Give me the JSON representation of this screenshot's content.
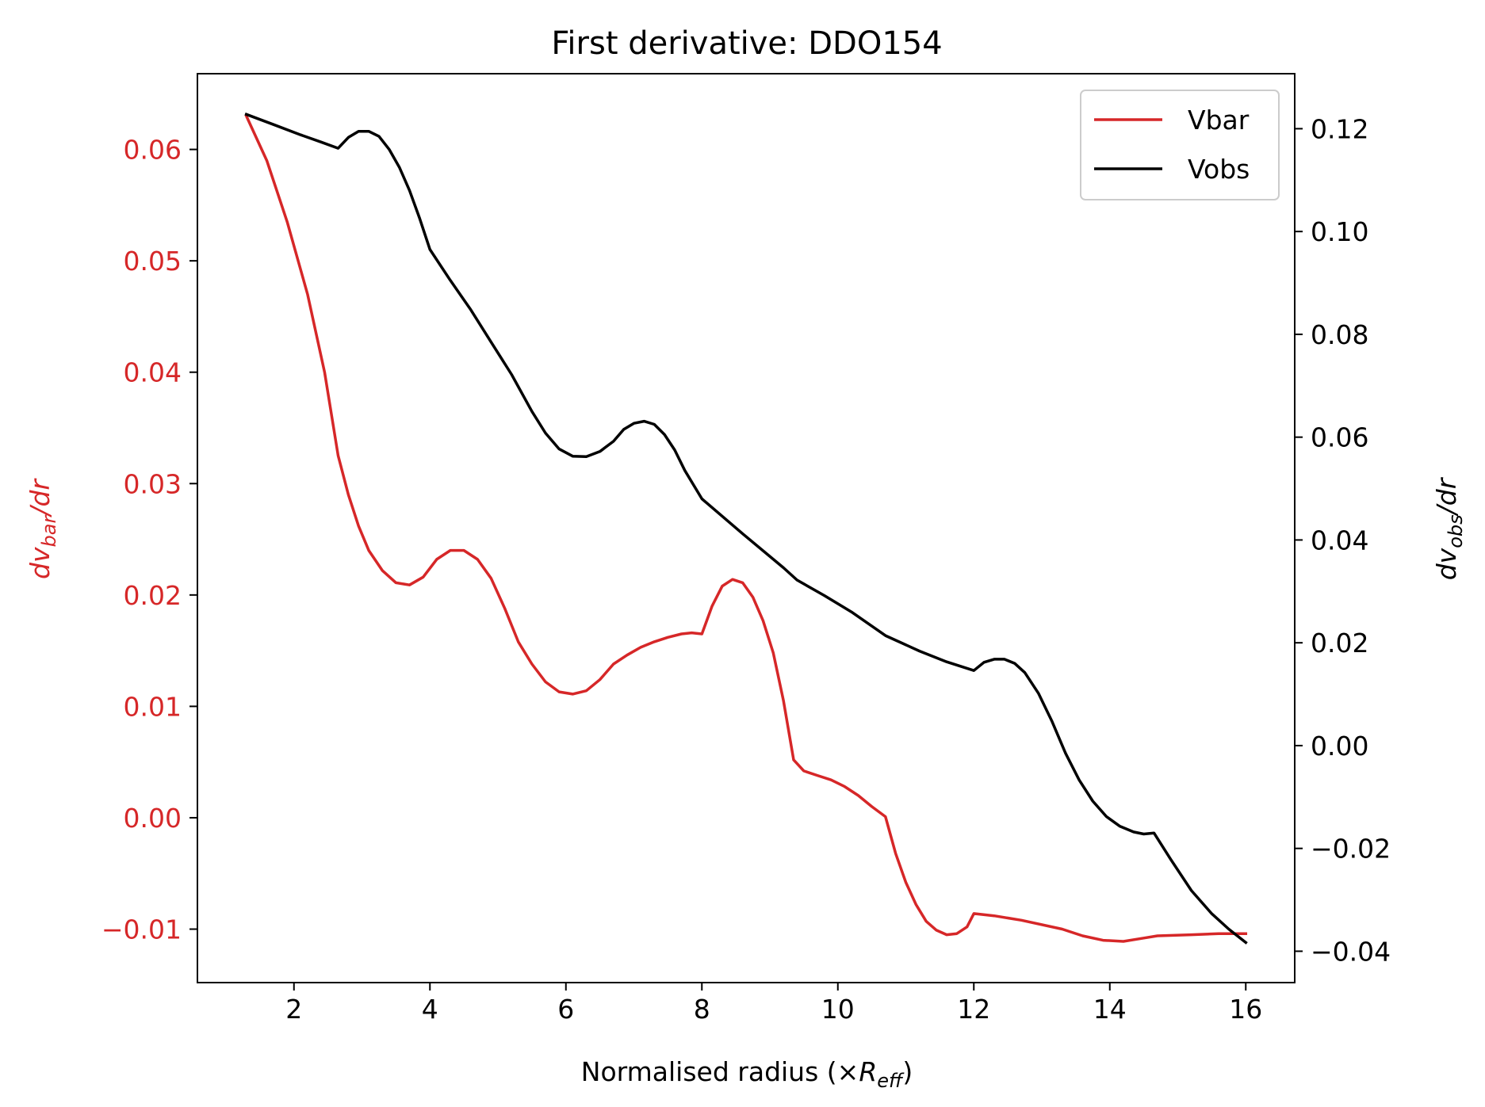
{
  "chart_data": {
    "type": "line",
    "title": "First derivative: DDO154",
    "xlabel": "Normalised radius (×R_eff)",
    "xlabel_parts": {
      "prefix": "Normalised radius (×",
      "var": "R",
      "sub": "eff",
      "suffix": ")"
    },
    "ylabel_left": "dv_bar/dr",
    "ylabel_left_parts": {
      "pre": "dv",
      "sub": "bar",
      "post": "/dr"
    },
    "ylabel_right": "dv_obs/dr",
    "ylabel_right_parts": {
      "pre": "dv",
      "sub": "obs",
      "post": "/dr"
    },
    "xlim": [
      0.58,
      16.72
    ],
    "ylim_left": [
      -0.0148,
      0.0668
    ],
    "ylim_right": [
      -0.0461,
      0.1307
    ],
    "x_ticks": [
      2,
      4,
      6,
      8,
      10,
      12,
      14,
      16
    ],
    "x_tick_labels": [
      "2",
      "4",
      "6",
      "8",
      "10",
      "12",
      "14",
      "16"
    ],
    "y_left_ticks": [
      -0.01,
      0.0,
      0.01,
      0.02,
      0.03,
      0.04,
      0.05,
      0.06
    ],
    "y_left_tick_labels": [
      "−0.01",
      "0.00",
      "0.01",
      "0.02",
      "0.03",
      "0.04",
      "0.05",
      "0.06"
    ],
    "y_right_ticks": [
      -0.04,
      -0.02,
      0.0,
      0.02,
      0.04,
      0.06,
      0.08,
      0.1,
      0.12
    ],
    "y_right_tick_labels": [
      "−0.04",
      "−0.02",
      "0.00",
      "0.02",
      "0.04",
      "0.06",
      "0.08",
      "0.10",
      "0.12"
    ],
    "grid": false,
    "legend_position": "top-right",
    "series": [
      {
        "name": "Vbar",
        "color": "#d62728",
        "axis": "left",
        "points": [
          [
            1.3,
            0.063
          ],
          [
            1.6,
            0.059
          ],
          [
            1.9,
            0.0535
          ],
          [
            2.2,
            0.047
          ],
          [
            2.45,
            0.04
          ],
          [
            2.65,
            0.0325
          ],
          [
            2.8,
            0.029
          ],
          [
            2.95,
            0.0262
          ],
          [
            3.1,
            0.024
          ],
          [
            3.3,
            0.0222
          ],
          [
            3.5,
            0.0211
          ],
          [
            3.7,
            0.0209
          ],
          [
            3.9,
            0.0216
          ],
          [
            4.1,
            0.0232
          ],
          [
            4.3,
            0.024
          ],
          [
            4.5,
            0.024
          ],
          [
            4.7,
            0.0232
          ],
          [
            4.9,
            0.0215
          ],
          [
            5.1,
            0.0188
          ],
          [
            5.3,
            0.0158
          ],
          [
            5.5,
            0.0138
          ],
          [
            5.7,
            0.0122
          ],
          [
            5.9,
            0.0113
          ],
          [
            6.1,
            0.0111
          ],
          [
            6.3,
            0.0114
          ],
          [
            6.5,
            0.0124
          ],
          [
            6.7,
            0.0138
          ],
          [
            6.9,
            0.0146
          ],
          [
            7.1,
            0.0153
          ],
          [
            7.3,
            0.0158
          ],
          [
            7.5,
            0.0162
          ],
          [
            7.7,
            0.0165
          ],
          [
            7.85,
            0.0166
          ],
          [
            8.0,
            0.0165
          ],
          [
            8.15,
            0.019
          ],
          [
            8.3,
            0.0208
          ],
          [
            8.45,
            0.0214
          ],
          [
            8.6,
            0.0211
          ],
          [
            8.75,
            0.0198
          ],
          [
            8.9,
            0.0177
          ],
          [
            9.05,
            0.0148
          ],
          [
            9.2,
            0.0105
          ],
          [
            9.35,
            0.0052
          ],
          [
            9.5,
            0.0042
          ],
          [
            9.7,
            0.0038
          ],
          [
            9.9,
            0.0034
          ],
          [
            10.1,
            0.0028
          ],
          [
            10.3,
            0.002
          ],
          [
            10.5,
            0.001
          ],
          [
            10.7,
            0.0001
          ],
          [
            10.85,
            -0.0032
          ],
          [
            11.0,
            -0.0058
          ],
          [
            11.15,
            -0.0078
          ],
          [
            11.3,
            -0.0093
          ],
          [
            11.45,
            -0.0101
          ],
          [
            11.6,
            -0.0105
          ],
          [
            11.75,
            -0.0104
          ],
          [
            11.9,
            -0.0098
          ],
          [
            12.0,
            -0.0086
          ],
          [
            12.3,
            -0.0088
          ],
          [
            12.7,
            -0.0092
          ],
          [
            13.3,
            -0.01
          ],
          [
            13.6,
            -0.0106
          ],
          [
            13.9,
            -0.011
          ],
          [
            14.2,
            -0.0111
          ],
          [
            14.5,
            -0.0108
          ],
          [
            14.7,
            -0.0106
          ],
          [
            15.2,
            -0.0105
          ],
          [
            15.6,
            -0.0104
          ],
          [
            16.0,
            -0.0104
          ]
        ]
      },
      {
        "name": "Vobs",
        "color": "#000000",
        "axis": "right",
        "points": [
          [
            1.3,
            0.1228
          ],
          [
            1.7,
            0.1208
          ],
          [
            2.1,
            0.1188
          ],
          [
            2.4,
            0.1174
          ],
          [
            2.65,
            0.1162
          ],
          [
            2.8,
            0.1183
          ],
          [
            2.95,
            0.1195
          ],
          [
            3.1,
            0.1195
          ],
          [
            3.25,
            0.1185
          ],
          [
            3.4,
            0.116
          ],
          [
            3.55,
            0.1125
          ],
          [
            3.7,
            0.108
          ],
          [
            3.85,
            0.1025
          ],
          [
            4.0,
            0.0965
          ],
          [
            4.3,
            0.0905
          ],
          [
            4.6,
            0.0848
          ],
          [
            4.9,
            0.0785
          ],
          [
            5.2,
            0.0722
          ],
          [
            5.5,
            0.065
          ],
          [
            5.7,
            0.0608
          ],
          [
            5.9,
            0.0577
          ],
          [
            6.1,
            0.0563
          ],
          [
            6.3,
            0.0562
          ],
          [
            6.5,
            0.0572
          ],
          [
            6.7,
            0.0592
          ],
          [
            6.85,
            0.0615
          ],
          [
            7.0,
            0.0627
          ],
          [
            7.15,
            0.0631
          ],
          [
            7.3,
            0.0625
          ],
          [
            7.45,
            0.0605
          ],
          [
            7.6,
            0.0575
          ],
          [
            7.75,
            0.0535
          ],
          [
            8.0,
            0.048
          ],
          [
            8.6,
            0.0412
          ],
          [
            9.2,
            0.0346
          ],
          [
            9.4,
            0.0322
          ],
          [
            9.8,
            0.0292
          ],
          [
            10.2,
            0.026
          ],
          [
            10.7,
            0.0214
          ],
          [
            11.2,
            0.0184
          ],
          [
            11.6,
            0.0163
          ],
          [
            12.0,
            0.0146
          ],
          [
            12.15,
            0.0162
          ],
          [
            12.3,
            0.0168
          ],
          [
            12.45,
            0.0168
          ],
          [
            12.6,
            0.016
          ],
          [
            12.75,
            0.0142
          ],
          [
            12.95,
            0.0102
          ],
          [
            13.15,
            0.0047
          ],
          [
            13.35,
            -0.0015
          ],
          [
            13.55,
            -0.0067
          ],
          [
            13.75,
            -0.0108
          ],
          [
            13.95,
            -0.0138
          ],
          [
            14.15,
            -0.0157
          ],
          [
            14.35,
            -0.0168
          ],
          [
            14.5,
            -0.0172
          ],
          [
            14.65,
            -0.017
          ],
          [
            14.9,
            -0.0222
          ],
          [
            15.2,
            -0.0282
          ],
          [
            15.5,
            -0.0327
          ],
          [
            15.75,
            -0.0357
          ],
          [
            16.0,
            -0.0383
          ]
        ]
      }
    ]
  }
}
